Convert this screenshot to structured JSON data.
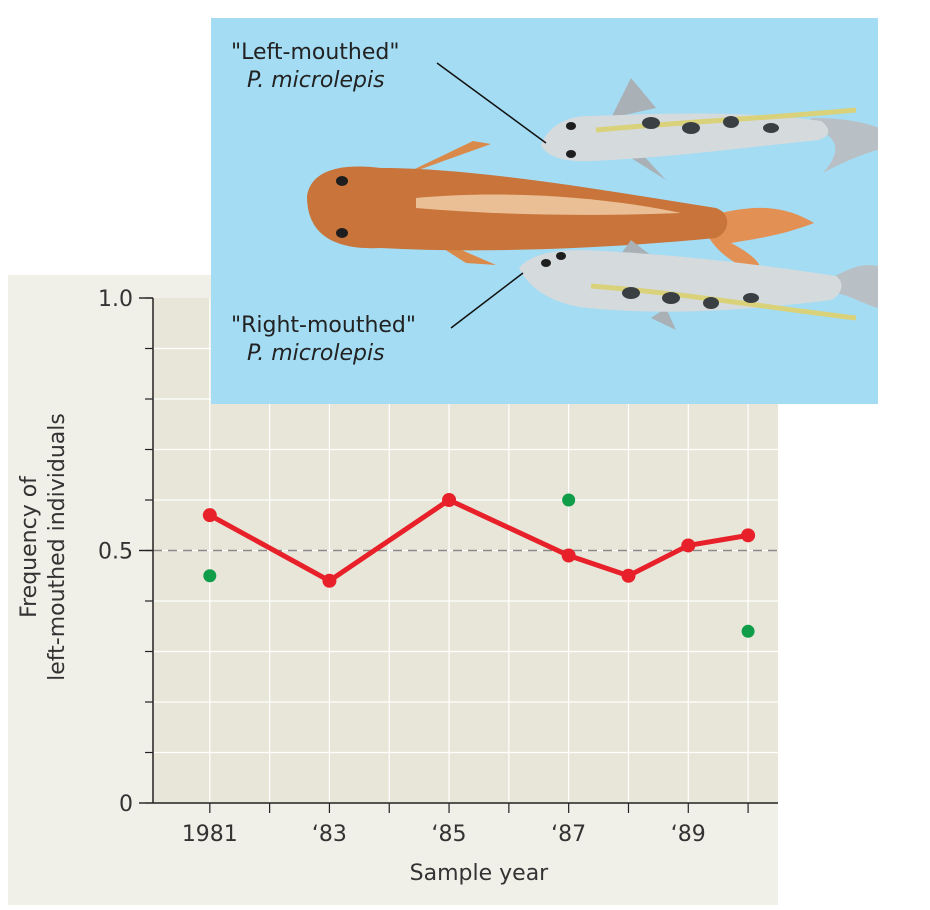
{
  "chart_data": {
    "type": "scatter",
    "title": "",
    "xlabel": "Sample year",
    "ylabel_lines": [
      "Frequency of",
      "left-mouthed individuals"
    ],
    "x_ticks": [
      {
        "x": 1981,
        "label": "1981"
      },
      {
        "x": 1983,
        "label": "‘83"
      },
      {
        "x": 1985,
        "label": "‘85"
      },
      {
        "x": 1987,
        "label": "‘87"
      },
      {
        "x": 1989,
        "label": "‘89"
      }
    ],
    "y_ticks": [
      {
        "y": 0,
        "label": "0"
      },
      {
        "y": 0.5,
        "label": "0.5"
      },
      {
        "y": 1.0,
        "label": "1.0"
      }
    ],
    "xlim": [
      1980.05,
      1990.5
    ],
    "ylim": [
      0,
      1.0
    ],
    "grid": true,
    "reference_line": 0.5,
    "series": [
      {
        "name": "Frequency of left-mouthed individuals (line)",
        "color": "#e8202a",
        "style": "line",
        "points": [
          {
            "x": 1981,
            "y": 0.57
          },
          {
            "x": 1983,
            "y": 0.44
          },
          {
            "x": 1985,
            "y": 0.6
          },
          {
            "x": 1987,
            "y": 0.49
          },
          {
            "x": 1988,
            "y": 0.45
          },
          {
            "x": 1989,
            "y": 0.51
          },
          {
            "x": 1990,
            "y": 0.53
          }
        ]
      },
      {
        "name": "Frequency of left-mouthed individuals (points)",
        "color": "#0f9d4a",
        "style": "points",
        "points": [
          {
            "x": 1981,
            "y": 0.45
          },
          {
            "x": 1987,
            "y": 0.6
          },
          {
            "x": 1990,
            "y": 0.34
          }
        ]
      }
    ]
  },
  "inset": {
    "left_label": "\"Left-mouthed\"",
    "left_species": "P. microlepis",
    "right_label": "\"Right-mouthed\"",
    "right_species": "P. microlepis"
  },
  "colors": {
    "panel_bg": "#f0efe8",
    "plot_bg": "#e8e6d8",
    "inset_bg": "#a4dcf3",
    "axis": "#222222"
  }
}
